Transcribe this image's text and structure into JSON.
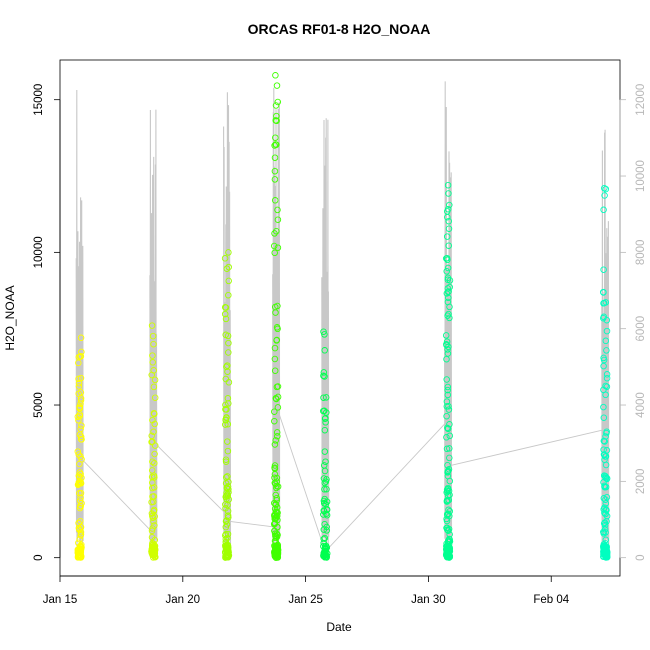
{
  "chart_data": {
    "type": "scatter",
    "title": "ORCAS RF01-8 H2O_NOAA",
    "xlabel": "Date",
    "ylabel": "H2O_NOAA",
    "x_unit": "days",
    "xlim": [
      0,
      22.8
    ],
    "ylim": [
      -600,
      16300
    ],
    "y2lim": [
      -480,
      13040
    ],
    "x_ticks": [
      {
        "value": 0.0,
        "label": "Jan 15"
      },
      {
        "value": 5.0,
        "label": "Jan 20"
      },
      {
        "value": 10.0,
        "label": "Jan 25"
      },
      {
        "value": 15.0,
        "label": "Jan 30"
      },
      {
        "value": 20.0,
        "label": "Feb 04"
      }
    ],
    "y_ticks": [
      0,
      5000,
      10000,
      15000
    ],
    "y2_ticks": [
      0,
      2000,
      4000,
      6000,
      8000,
      10000,
      12000
    ],
    "grid": false,
    "legend": "none",
    "colors": {
      "altitude_trace": "#c8c8c8",
      "right_axis": "#b8b8b8",
      "flight_colors": [
        "#ffff00",
        "#d0ff00",
        "#a0ff00",
        "#40ff00",
        "#00ff50",
        "#00ff90",
        "#00ffc0"
      ]
    },
    "flights": [
      {
        "center": 0.8,
        "color": "#ffff00",
        "max": 7200,
        "alt_peak": 12300,
        "count": 110
      },
      {
        "center": 3.8,
        "color": "#d0ff00",
        "max": 7600,
        "alt_peak": 12100,
        "count": 85
      },
      {
        "center": 6.8,
        "color": "#a0ff00",
        "max": 10000,
        "alt_peak": 12300,
        "count": 115
      },
      {
        "center": 8.8,
        "color": "#40ff00",
        "max": 15800,
        "alt_peak": 12700,
        "count": 160
      },
      {
        "center": 10.8,
        "color": "#00ff50",
        "max": 7400,
        "alt_peak": 11900,
        "count": 80
      },
      {
        "center": 15.8,
        "color": "#00ff90",
        "max": 12200,
        "alt_peak": 12500,
        "count": 170
      },
      {
        "center": 22.2,
        "color": "#00ffc0",
        "max": 12100,
        "alt_peak": 12000,
        "count": 145
      }
    ],
    "connectors": [
      [
        [
          0.8,
          3300
        ],
        [
          3.8,
          800
        ]
      ],
      [
        [
          3.8,
          3800
        ],
        [
          6.8,
          1400
        ]
      ],
      [
        [
          6.8,
          1200
        ],
        [
          8.8,
          1000
        ]
      ],
      [
        [
          8.8,
          5000
        ],
        [
          10.8,
          200
        ]
      ],
      [
        [
          10.8,
          200
        ],
        [
          15.8,
          4500
        ]
      ],
      [
        [
          15.8,
          3000
        ],
        [
          22.2,
          4200
        ]
      ]
    ]
  }
}
